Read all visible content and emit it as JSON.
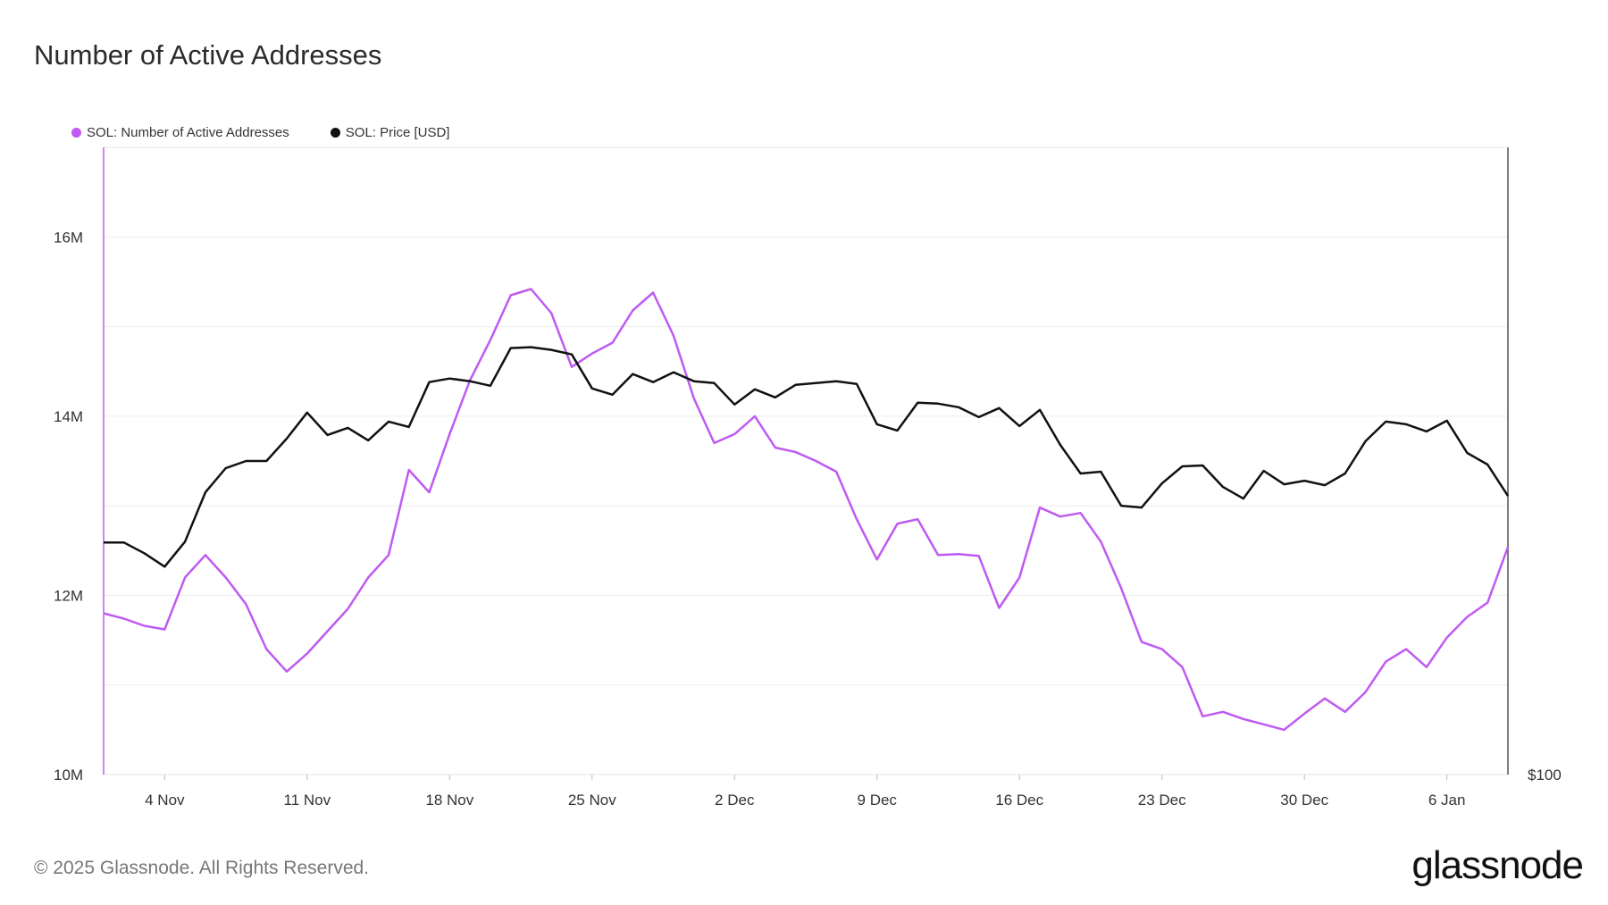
{
  "title": "Number of Active Addresses",
  "legend": [
    {
      "label": "SOL: Number of Active Addresses",
      "color": "#bf5af2"
    },
    {
      "label": "SOL: Price [USD]",
      "color": "#111111"
    }
  ],
  "footer": "© 2025 Glassnode. All Rights Reserved.",
  "brand": "glassnode",
  "chart_data": {
    "type": "line",
    "title": "Number of Active Addresses",
    "x_start": "2024-11-01",
    "x_end": "2025-01-09",
    "x_ticks": [
      "4 Nov",
      "11 Nov",
      "18 Nov",
      "25 Nov",
      "2 Dec",
      "9 Dec",
      "16 Dec",
      "23 Dec",
      "30 Dec",
      "6 Jan"
    ],
    "y_left_ticks": [
      "10M",
      "12M",
      "14M",
      "16M"
    ],
    "y_left_range": [
      10000000,
      17000000
    ],
    "y_right_ticks": [
      "$100"
    ],
    "grid": true,
    "legend_position": "top-left",
    "series": [
      {
        "name": "SOL: Number of Active Addresses",
        "color": "#bf5af2",
        "axis": "left",
        "values": [
          11800000,
          11740000,
          11660000,
          11620000,
          12200000,
          12450000,
          12200000,
          11900000,
          11400000,
          11150000,
          11350000,
          11600000,
          11850000,
          12200000,
          12450000,
          13400000,
          13150000,
          13800000,
          14400000,
          14850000,
          15350000,
          15420000,
          15150000,
          14550000,
          14700000,
          14820000,
          15180000,
          15380000,
          14900000,
          14200000,
          13700000,
          13800000,
          14000000,
          13650000,
          13600000,
          13500000,
          13380000,
          12850000,
          12400000,
          12800000,
          12850000,
          12450000,
          12460000,
          12440000,
          11860000,
          12200000,
          12980000,
          12880000,
          12920000,
          12600000,
          12080000,
          11480000,
          11400000,
          11200000,
          10650000,
          10700000,
          10620000,
          10560000,
          10500000,
          10680000,
          10850000,
          10700000,
          10920000,
          11260000,
          11400000,
          11200000,
          11530000,
          11760000,
          11920000,
          12540000
        ]
      },
      {
        "name": "SOL: Price [USD]",
        "color": "#111111",
        "axis": "right",
        "values": [
          12590000,
          12590000,
          12470000,
          12320000,
          12600000,
          13150000,
          13420000,
          13500000,
          13500000,
          13750000,
          14040000,
          13790000,
          13870000,
          13730000,
          13940000,
          13880000,
          14380000,
          14420000,
          14390000,
          14340000,
          14760000,
          14770000,
          14740000,
          14690000,
          14310000,
          14240000,
          14470000,
          14380000,
          14490000,
          14390000,
          14370000,
          14130000,
          14300000,
          14210000,
          14350000,
          14370000,
          14390000,
          14360000,
          13910000,
          13840000,
          14150000,
          14140000,
          14100000,
          13990000,
          14090000,
          13890000,
          14070000,
          13680000,
          13360000,
          13380000,
          13000000,
          12980000,
          13250000,
          13440000,
          13450000,
          13210000,
          13080000,
          13390000,
          13240000,
          13280000,
          13230000,
          13360000,
          13720000,
          13940000,
          13910000,
          13830000,
          13950000,
          13590000,
          13460000,
          13110000
        ]
      }
    ]
  }
}
